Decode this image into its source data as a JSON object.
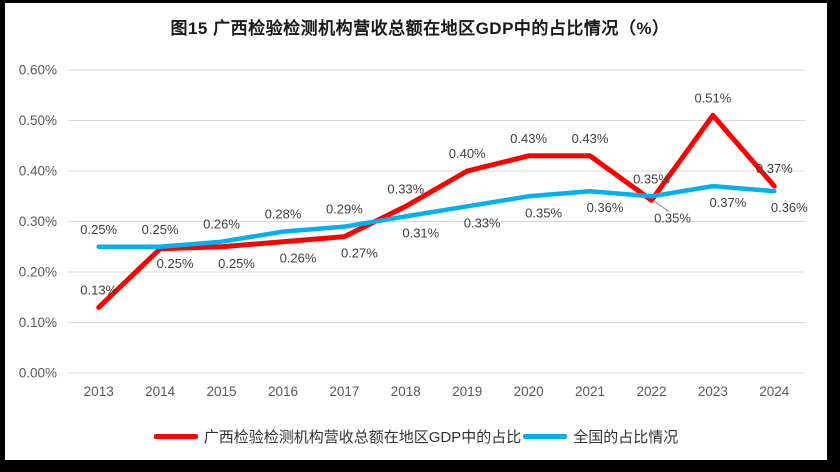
{
  "chart_data": {
    "type": "line",
    "title": "图15 广西检验检测机构营收总额在地区GDP中的占比情况（%）",
    "categories": [
      "2013",
      "2014",
      "2015",
      "2016",
      "2017",
      "2018",
      "2019",
      "2020",
      "2021",
      "2022",
      "2023",
      "2024"
    ],
    "series": [
      {
        "name": "广西检验检测机构营收总额在地区GDP中的占比",
        "color": "#FF0000",
        "values": [
          0.13,
          0.25,
          0.25,
          0.26,
          0.27,
          0.33,
          0.4,
          0.43,
          0.43,
          0.35,
          0.51,
          0.37
        ],
        "data_labels": [
          "0.13%",
          "0.25%",
          "0.25%",
          "0.26%",
          "0.27%",
          "0.33%",
          "0.40%",
          "0.43%",
          "0.43%",
          "0.35%",
          "0.51%",
          "0.37%"
        ],
        "label_side": [
          "above",
          "below",
          "below",
          "below",
          "below",
          "above",
          "above",
          "above",
          "above",
          "above",
          "above",
          "above"
        ]
      },
      {
        "name": "全国的占比情况",
        "color": "#00B0F0",
        "values": [
          0.25,
          0.25,
          0.26,
          0.28,
          0.29,
          0.31,
          0.33,
          0.35,
          0.36,
          0.35,
          0.37,
          0.36
        ],
        "data_labels": [
          "0.25%",
          "0.25%",
          "0.26%",
          "0.28%",
          "0.29%",
          "0.31%",
          "0.33%",
          "0.35%",
          "0.36%",
          "0.35%",
          "0.37%",
          "0.36%"
        ],
        "label_side": [
          "above",
          "above",
          "above",
          "above",
          "above",
          "below",
          "below",
          "below",
          "below",
          "below-leader",
          "below",
          "below"
        ]
      }
    ],
    "ylim": [
      0,
      0.6
    ],
    "y_ticks": [
      "0.00%",
      "0.10%",
      "0.20%",
      "0.30%",
      "0.40%",
      "0.50%",
      "0.60%"
    ],
    "grid": true,
    "legend_position": "bottom",
    "xlabel": "",
    "ylabel": ""
  },
  "colors": {
    "gridline": "#D9D9D9",
    "axis_text": "#595959",
    "data_label_text": "#3f3f3f",
    "leader_line": "#A6A6A6",
    "frame": "#000000",
    "background": "#FFFFFF"
  }
}
